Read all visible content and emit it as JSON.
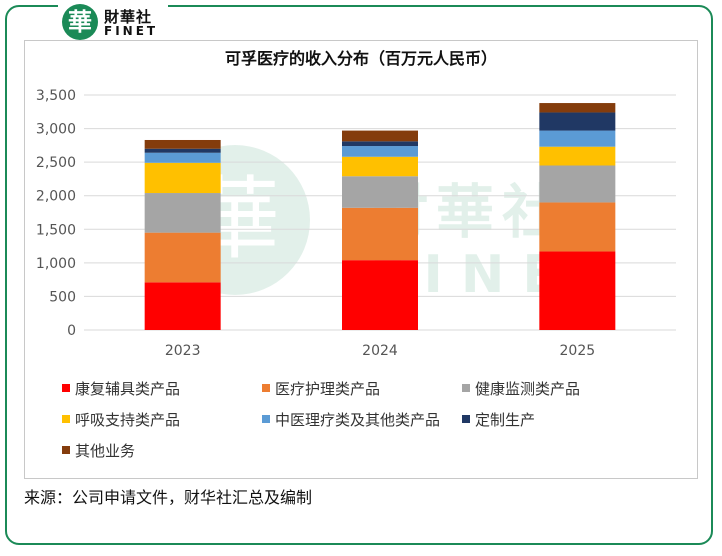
{
  "logo": {
    "mark": "華",
    "cn": "財華社",
    "en": "FINET"
  },
  "watermark": {
    "mark": "華",
    "cn": "財華社",
    "en": "FINET"
  },
  "source": "来源：公司申请文件，财华社汇总及编制",
  "chart_data": {
    "type": "bar",
    "stacked": true,
    "title": "可孚医疗的收入分布（百万元人民币）",
    "xlabel": "",
    "ylabel": "",
    "categories": [
      "2023",
      "2024",
      "2025"
    ],
    "ylim": [
      0,
      3500
    ],
    "yticks": [
      0,
      500,
      1000,
      1500,
      2000,
      2500,
      3000,
      3500
    ],
    "ytick_labels": [
      "0",
      "500",
      "1,000",
      "1,500",
      "2,000",
      "2,500",
      "3,000",
      "3,500"
    ],
    "grid": true,
    "legend_position": "bottom",
    "series": [
      {
        "name": "康复辅具类产品",
        "color": "#ff0000",
        "values": [
          710,
          1040,
          1170
        ]
      },
      {
        "name": "医疗护理类产品",
        "color": "#ed7d31",
        "values": [
          740,
          780,
          730
        ]
      },
      {
        "name": "健康监测类产品",
        "color": "#a5a5a5",
        "values": [
          590,
          470,
          550
        ]
      },
      {
        "name": "呼吸支持类产品",
        "color": "#ffc000",
        "values": [
          450,
          290,
          280
        ]
      },
      {
        "name": "中医理疗类及其他类产品",
        "color": "#5b9bd5",
        "values": [
          150,
          160,
          240
        ]
      },
      {
        "name": "定制生产",
        "color": "#203864",
        "values": [
          60,
          70,
          270
        ]
      },
      {
        "name": "其他业务",
        "color": "#843c0c",
        "values": [
          130,
          160,
          140
        ]
      }
    ]
  }
}
